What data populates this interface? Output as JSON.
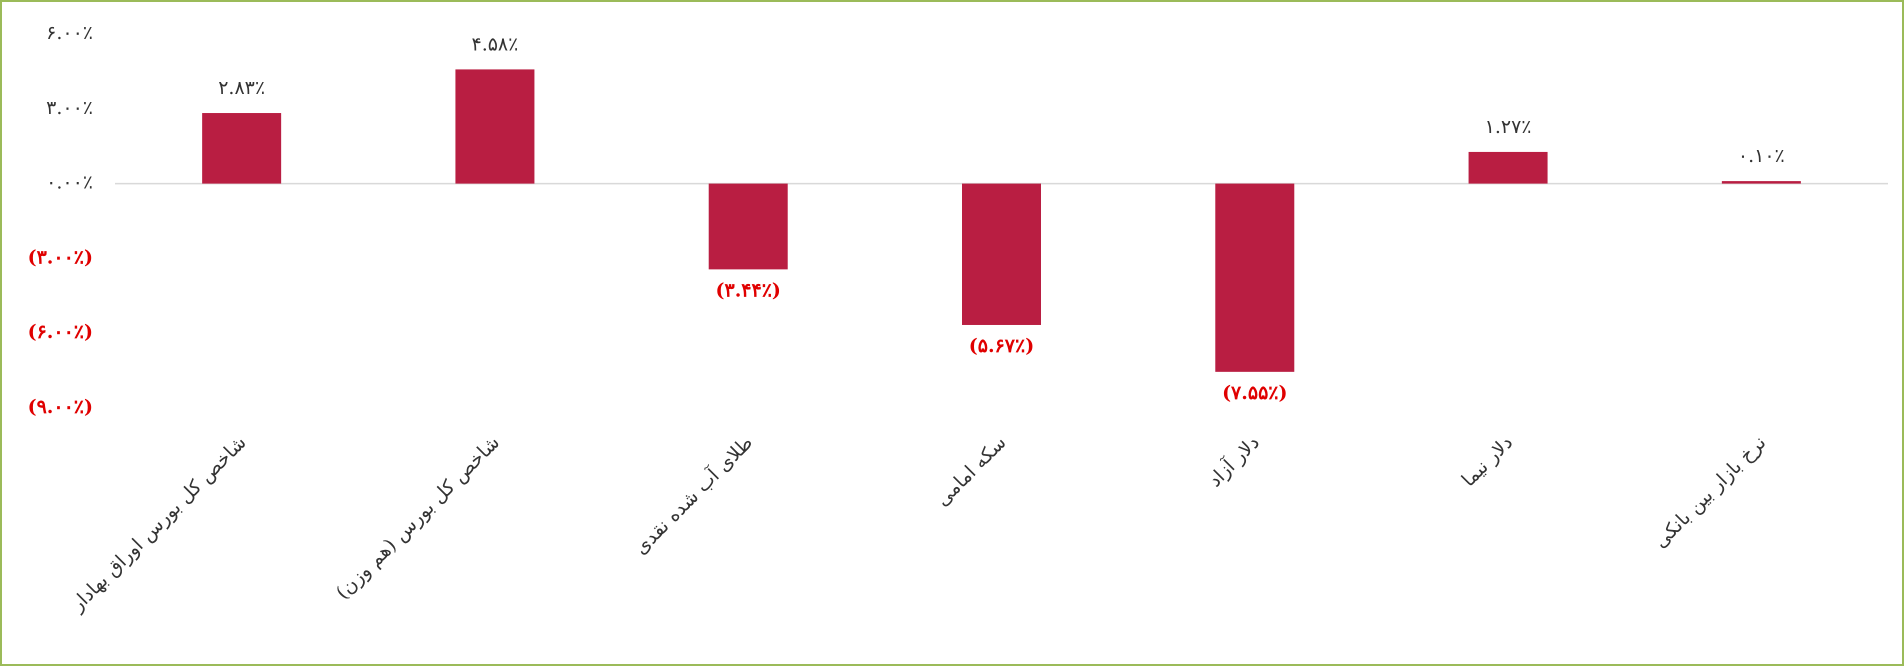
{
  "chart_data": {
    "type": "bar",
    "categories": [
      "شاخص کل بورس اوراق بهادار",
      "شاخص کل بورس (هم وزن)",
      "طلای آب شده نقدی",
      "سکه امامی",
      "دلار آزاد",
      "دلار نیما",
      "نرخ بازار بین بانکی"
    ],
    "values": [
      2.83,
      4.58,
      -3.44,
      -5.67,
      -7.55,
      1.27,
      0.1
    ],
    "value_labels": [
      "۲.۸۳٪",
      "۴.۵۸٪",
      "(۳.۴۴٪)",
      "(۵.۶۷٪)",
      "(۷.۵۵٪)",
      "۱.۲۷٪",
      "۰.۱۰٪"
    ],
    "color": "#b91e42",
    "ylim": [
      -9,
      6
    ],
    "yticks": [
      {
        "value": 6,
        "label": "۶.۰۰٪"
      },
      {
        "value": 3,
        "label": "۳.۰۰٪"
      },
      {
        "value": 0,
        "label": "۰.۰۰٪"
      },
      {
        "value": -3,
        "label": "(۳.۰۰٪)"
      },
      {
        "value": -6,
        "label": "(۶.۰۰٪)"
      },
      {
        "value": -9,
        "label": "(۹.۰۰٪)"
      }
    ]
  }
}
